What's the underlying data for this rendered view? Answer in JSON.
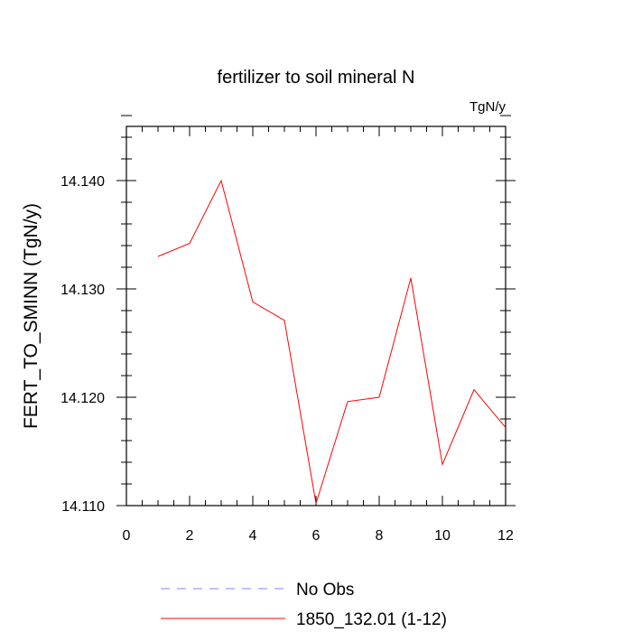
{
  "chart_data": {
    "type": "line",
    "title": "fertilizer to soil mineral N",
    "units_label": "TgN/y",
    "xlabel": "",
    "ylabel": "FERT_TO_SMINN  (TgN/y)",
    "xlim": [
      0,
      12
    ],
    "ylim": [
      14.11,
      14.145
    ],
    "x_ticks": [
      0,
      2,
      4,
      6,
      8,
      10,
      12
    ],
    "x_tick_labels": [
      "0",
      "2",
      "4",
      "6",
      "8",
      "10",
      "12"
    ],
    "y_ticks": [
      14.11,
      14.12,
      14.13,
      14.14
    ],
    "y_tick_labels": [
      "14.110",
      "14.120",
      "14.130",
      "14.140"
    ],
    "grid": false,
    "legend_position": "bottom",
    "series": [
      {
        "name": "No Obs",
        "color": "#8080ff",
        "dash": true,
        "x": [],
        "y": []
      },
      {
        "name": "1850_132.01 (1-12)",
        "color": "#ff0000",
        "dash": false,
        "x": [
          1,
          2,
          3,
          4,
          5,
          6,
          7,
          8,
          9,
          10,
          11,
          12
        ],
        "y": [
          14.133,
          14.1342,
          14.14,
          14.1288,
          14.1271,
          14.1102,
          14.1196,
          14.12,
          14.131,
          14.1138,
          14.1207,
          14.1172
        ]
      }
    ]
  }
}
